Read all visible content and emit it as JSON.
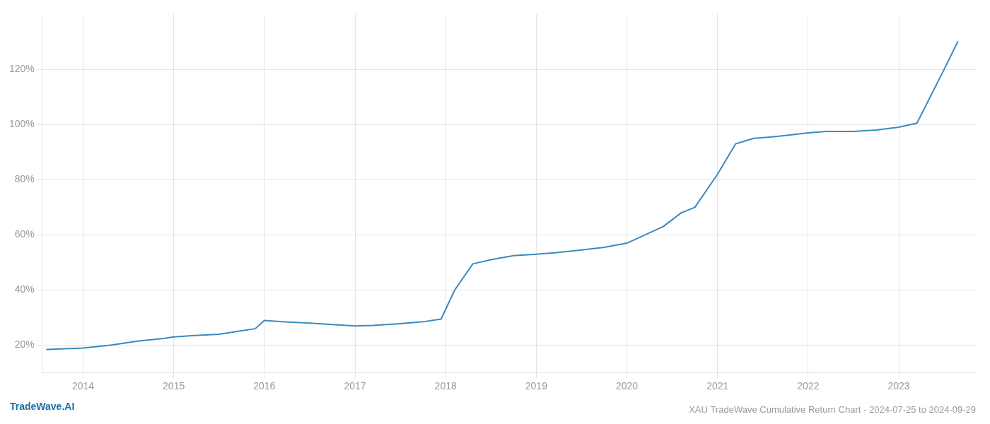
{
  "chart_data": {
    "type": "line",
    "title": "XAU TradeWave Cumulative Return Chart - 2024-07-25 to 2024-09-29",
    "annotation": "TradeWave.AI",
    "x": [
      2013.6,
      2014.0,
      2014.3,
      2014.6,
      2014.9,
      2015.0,
      2015.2,
      2015.5,
      2015.7,
      2015.9,
      2016.0,
      2016.2,
      2016.5,
      2016.75,
      2017.0,
      2017.2,
      2017.5,
      2017.75,
      2017.95,
      2018.1,
      2018.3,
      2018.5,
      2018.75,
      2019.0,
      2019.2,
      2019.5,
      2019.75,
      2020.0,
      2020.2,
      2020.4,
      2020.6,
      2020.75,
      2021.0,
      2021.2,
      2021.4,
      2021.6,
      2021.75,
      2022.0,
      2022.2,
      2022.5,
      2022.75,
      2023.0,
      2023.2,
      2023.5,
      2023.65
    ],
    "values": [
      18.5,
      19.0,
      20.0,
      21.5,
      22.5,
      23.0,
      23.5,
      24.0,
      25.0,
      26.0,
      29.0,
      28.5,
      28.0,
      27.5,
      27.0,
      27.2,
      27.8,
      28.5,
      29.5,
      40.0,
      49.5,
      51.0,
      52.5,
      53.0,
      53.5,
      54.5,
      55.5,
      57.0,
      60.0,
      63.0,
      68.0,
      70.0,
      82.0,
      93.0,
      95.0,
      95.5,
      96.0,
      97.0,
      97.5,
      97.5,
      98.0,
      99.0,
      100.5,
      120.0,
      130.0
    ],
    "color": "#3a8abf",
    "xlim": [
      2013.55,
      2023.85
    ],
    "ylim": [
      10,
      140
    ],
    "xticks": [
      2014,
      2015,
      2016,
      2017,
      2018,
      2019,
      2020,
      2021,
      2022,
      2023
    ],
    "yticks": [
      {
        "value": 20,
        "label": "20%"
      },
      {
        "value": 40,
        "label": "40%"
      },
      {
        "value": 60,
        "label": "60%"
      },
      {
        "value": 80,
        "label": "80%"
      },
      {
        "value": 100,
        "label": "100%"
      },
      {
        "value": 120,
        "label": "120%"
      }
    ],
    "grid": true
  }
}
